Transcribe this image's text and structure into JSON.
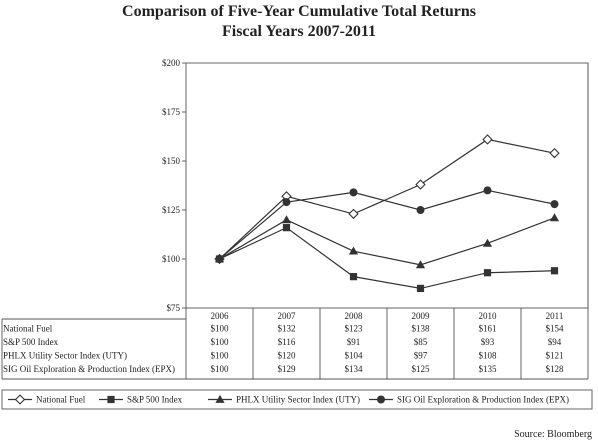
{
  "title": "Comparison of Five-Year Cumulative Total Returns",
  "subtitle": "Fiscal Years 2007-2011",
  "source": "Source: Bloomberg",
  "chart_data": {
    "type": "line",
    "categories": [
      "2006",
      "2007",
      "2008",
      "2009",
      "2010",
      "2011"
    ],
    "ylim": [
      75,
      200
    ],
    "yticks": [
      75,
      100,
      125,
      150,
      175,
      200
    ],
    "ytick_labels": [
      "$75",
      "$100",
      "$125",
      "$150",
      "$175",
      "$200"
    ],
    "grid": false,
    "legend_position": "bottom",
    "series": [
      {
        "name": "National Fuel",
        "marker": "diamond-open",
        "values": [
          100,
          132,
          123,
          138,
          161,
          154
        ],
        "labels": [
          "$100",
          "$132",
          "$123",
          "$138",
          "$161",
          "$154"
        ]
      },
      {
        "name": "S&P 500 Index",
        "marker": "square",
        "values": [
          100,
          116,
          91,
          85,
          93,
          94
        ],
        "labels": [
          "$100",
          "$116",
          "$91",
          "$85",
          "$93",
          "$94"
        ]
      },
      {
        "name": "PHLX Utility Sector Index (UTY)",
        "marker": "triangle",
        "values": [
          100,
          120,
          104,
          97,
          108,
          121
        ],
        "labels": [
          "$100",
          "$120",
          "$104",
          "$97",
          "$108",
          "$121"
        ]
      },
      {
        "name": "SIG Oil Exploration & Production Index (EPX)",
        "marker": "circle",
        "values": [
          100,
          129,
          134,
          125,
          135,
          128
        ],
        "labels": [
          "$100",
          "$129",
          "$134",
          "$125",
          "$135",
          "$128"
        ]
      }
    ],
    "colors": {
      "line": "#333333",
      "axis": "#555555",
      "text": "#222222"
    }
  }
}
